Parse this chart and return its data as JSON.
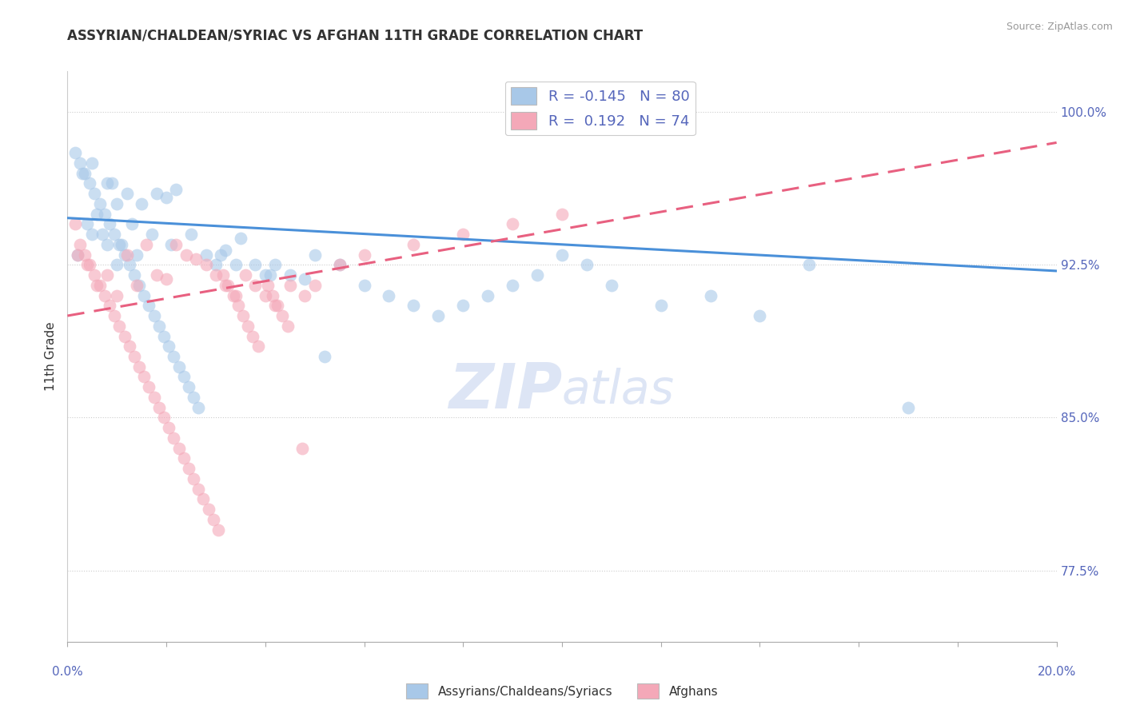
{
  "title": "ASSYRIAN/CHALDEAN/SYRIAC VS AFGHAN 11TH GRADE CORRELATION CHART",
  "source": "Source: ZipAtlas.com",
  "ylabel": "11th Grade",
  "xlim": [
    0.0,
    20.0
  ],
  "ylim": [
    74.0,
    102.0
  ],
  "yticks": [
    77.5,
    85.0,
    92.5,
    100.0
  ],
  "ytick_labels": [
    "77.5%",
    "85.0%",
    "92.5%",
    "100.0%"
  ],
  "xtick_positions": [
    0.0,
    2.0,
    4.0,
    6.0,
    8.0,
    10.0,
    12.0,
    14.0,
    16.0,
    18.0,
    20.0
  ],
  "legend_label_blue": "R = -0.145   N = 80",
  "legend_label_pink": "R =  0.192   N = 74",
  "bottom_legend": [
    "Assyrians/Chaldeans/Syriacs",
    "Afghans"
  ],
  "blue_color": "#a8c8e8",
  "pink_color": "#f4a8b8",
  "blue_line_color": "#4a90d9",
  "pink_line_color": "#e86080",
  "title_color": "#333333",
  "axis_label_color": "#5566bb",
  "source_color": "#999999",
  "blue_scatter_x": [
    0.5,
    0.8,
    1.0,
    1.2,
    0.3,
    0.6,
    0.9,
    1.5,
    1.8,
    2.0,
    2.2,
    0.4,
    0.7,
    1.1,
    1.3,
    0.2,
    0.5,
    0.8,
    1.0,
    1.4,
    1.7,
    2.1,
    2.5,
    2.8,
    3.0,
    3.2,
    3.5,
    3.8,
    4.0,
    4.2,
    4.5,
    4.8,
    5.0,
    5.5,
    6.0,
    6.5,
    7.0,
    7.5,
    8.0,
    8.5,
    9.0,
    9.5,
    10.0,
    10.5,
    11.0,
    12.0,
    13.0,
    14.0,
    15.0,
    0.15,
    0.25,
    0.35,
    0.45,
    0.55,
    0.65,
    0.75,
    0.85,
    0.95,
    1.05,
    1.15,
    1.25,
    1.35,
    1.45,
    1.55,
    1.65,
    1.75,
    1.85,
    1.95,
    2.05,
    2.15,
    2.25,
    2.35,
    2.45,
    2.55,
    2.65,
    3.1,
    3.4,
    4.1,
    5.2,
    17.0
  ],
  "blue_scatter_y": [
    97.5,
    96.5,
    95.5,
    96.0,
    97.0,
    95.0,
    96.5,
    95.5,
    96.0,
    95.8,
    96.2,
    94.5,
    94.0,
    93.5,
    94.5,
    93.0,
    94.0,
    93.5,
    92.5,
    93.0,
    94.0,
    93.5,
    94.0,
    93.0,
    92.5,
    93.2,
    93.8,
    92.5,
    92.0,
    92.5,
    92.0,
    91.8,
    93.0,
    92.5,
    91.5,
    91.0,
    90.5,
    90.0,
    90.5,
    91.0,
    91.5,
    92.0,
    93.0,
    92.5,
    91.5,
    90.5,
    91.0,
    90.0,
    92.5,
    98.0,
    97.5,
    97.0,
    96.5,
    96.0,
    95.5,
    95.0,
    94.5,
    94.0,
    93.5,
    93.0,
    92.5,
    92.0,
    91.5,
    91.0,
    90.5,
    90.0,
    89.5,
    89.0,
    88.5,
    88.0,
    87.5,
    87.0,
    86.5,
    86.0,
    85.5,
    93.0,
    92.5,
    92.0,
    88.0,
    85.5
  ],
  "pink_scatter_x": [
    0.2,
    0.4,
    0.6,
    0.8,
    1.0,
    1.2,
    1.4,
    1.6,
    1.8,
    2.0,
    2.2,
    2.4,
    2.6,
    2.8,
    3.0,
    3.2,
    3.4,
    3.6,
    3.8,
    4.0,
    4.2,
    4.5,
    4.8,
    5.0,
    5.5,
    6.0,
    7.0,
    8.0,
    9.0,
    10.0,
    0.15,
    0.25,
    0.35,
    0.45,
    0.55,
    0.65,
    0.75,
    0.85,
    0.95,
    1.05,
    1.15,
    1.25,
    1.35,
    1.45,
    1.55,
    1.65,
    1.75,
    1.85,
    1.95,
    2.05,
    2.15,
    2.25,
    2.35,
    2.45,
    2.55,
    2.65,
    2.75,
    2.85,
    2.95,
    3.05,
    3.15,
    3.25,
    3.35,
    3.45,
    3.55,
    3.65,
    3.75,
    3.85,
    4.05,
    4.15,
    4.25,
    4.35,
    4.45,
    4.75
  ],
  "pink_scatter_y": [
    93.0,
    92.5,
    91.5,
    92.0,
    91.0,
    93.0,
    91.5,
    93.5,
    92.0,
    91.8,
    93.5,
    93.0,
    92.8,
    92.5,
    92.0,
    91.5,
    91.0,
    92.0,
    91.5,
    91.0,
    90.5,
    91.5,
    91.0,
    91.5,
    92.5,
    93.0,
    93.5,
    94.0,
    94.5,
    95.0,
    94.5,
    93.5,
    93.0,
    92.5,
    92.0,
    91.5,
    91.0,
    90.5,
    90.0,
    89.5,
    89.0,
    88.5,
    88.0,
    87.5,
    87.0,
    86.5,
    86.0,
    85.5,
    85.0,
    84.5,
    84.0,
    83.5,
    83.0,
    82.5,
    82.0,
    81.5,
    81.0,
    80.5,
    80.0,
    79.5,
    92.0,
    91.5,
    91.0,
    90.5,
    90.0,
    89.5,
    89.0,
    88.5,
    91.5,
    91.0,
    90.5,
    90.0,
    89.5,
    83.5
  ],
  "blue_trend_x": [
    0.0,
    20.0
  ],
  "blue_trend_y": [
    94.8,
    92.2
  ],
  "pink_trend_x": [
    0.0,
    20.0
  ],
  "pink_trend_y": [
    90.0,
    98.5
  ],
  "watermark_zip": "ZIP",
  "watermark_atlas": "atlas",
  "watermark_color": "#dde5f5",
  "background_color": "#ffffff"
}
